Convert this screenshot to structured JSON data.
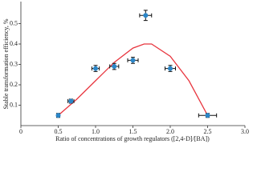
{
  "chart_data": {
    "type": "scatter",
    "x_label": "Ratio of concentrations of growth regulators ([2,4-D]/[BA])",
    "y_label": "Stable transformation efficiency, %",
    "xlim": [
      0,
      3.0
    ],
    "xticks": [
      0,
      0.5,
      {
        "value": 1,
        "label": "1.0"
      },
      1.5,
      {
        "value": 2,
        "label": "2.0"
      },
      2.5,
      {
        "value": 3,
        "label": "3.0"
      }
    ],
    "ylim": [
      0,
      0.6
    ],
    "yticks": [
      0.1,
      0.2,
      0.3,
      0.4,
      0.5
    ],
    "points": {
      "color": "#2b86c8",
      "x": [
        0.5,
        0.67,
        1.0,
        1.25,
        1.5,
        1.67,
        2.0,
        2.5
      ],
      "values": [
        0.05,
        0.12,
        0.28,
        0.29,
        0.32,
        0.54,
        0.28,
        0.05
      ],
      "x_err": [
        0.02,
        0.04,
        0.05,
        0.06,
        0.07,
        0.08,
        0.07,
        0.12
      ],
      "y_err": [
        0.01,
        0.01,
        0.015,
        0.015,
        0.015,
        0.025,
        0.015,
        0.01
      ]
    },
    "fit": {
      "color": "#e8363f",
      "x": [
        0.5,
        0.75,
        1.0,
        1.25,
        1.5,
        1.65,
        1.75,
        2.0,
        2.25,
        2.5
      ],
      "values": [
        0.05,
        0.13,
        0.22,
        0.31,
        0.38,
        0.4,
        0.4,
        0.34,
        0.22,
        0.05
      ]
    }
  }
}
